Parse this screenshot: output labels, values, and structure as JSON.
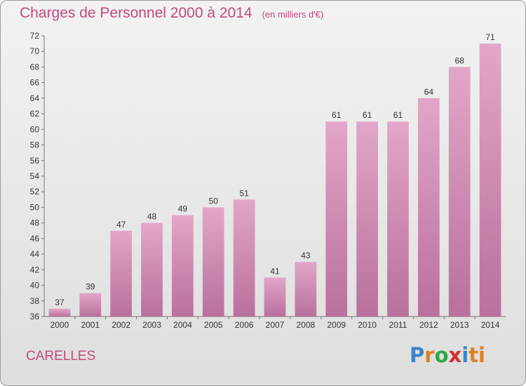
{
  "header": {
    "title": "Charges de Personnel 2000 à 2014",
    "subtitle": "(en milliers d'€)"
  },
  "commune": "CARELLES",
  "logo_text": "Proxiti",
  "colors": {
    "title": "#c14a7e",
    "bar_top": "#e2a6c8",
    "bar_bottom": "#b9709c"
  },
  "chart_data": {
    "type": "bar",
    "title": "Charges de Personnel 2000 à 2014",
    "subtitle": "(en milliers d'€)",
    "categories": [
      "2000",
      "2001",
      "2002",
      "2003",
      "2004",
      "2005",
      "2006",
      "2007",
      "2008",
      "2009",
      "2010",
      "2011",
      "2012",
      "2013",
      "2014"
    ],
    "values": [
      37,
      39,
      47,
      48,
      49,
      50,
      51,
      41,
      43,
      61,
      61,
      61,
      64,
      68,
      71
    ],
    "ylim": [
      36,
      72
    ],
    "yticks": [
      36,
      38,
      40,
      42,
      44,
      46,
      48,
      50,
      52,
      54,
      56,
      58,
      60,
      62,
      64,
      66,
      68,
      70,
      72
    ],
    "grid": false,
    "data_labels": true
  }
}
